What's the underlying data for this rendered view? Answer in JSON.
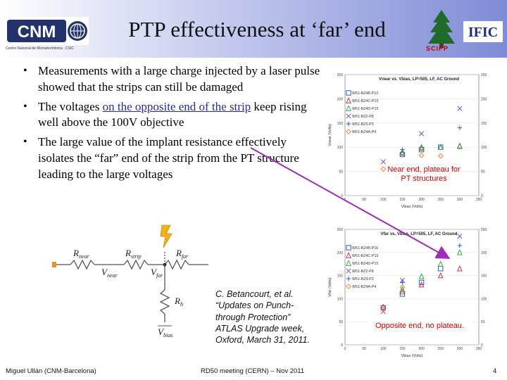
{
  "header": {
    "title": "PTP effectiveness at ‘far’ end"
  },
  "logos": {
    "cnm_text": "CNM",
    "cnm_subtitle": "Centro Nacional de Microelectrónica · CSIC",
    "scipp_text": "SCIPP",
    "ific_text": "IFIC"
  },
  "bullets": [
    {
      "text": "Measurements with a large charge injected by a laser pulse showed that the strips can still be damaged"
    },
    {
      "before": "The voltages ",
      "link": "on the opposite end of the strip",
      "after": " keep rising well above the 100V objective"
    },
    {
      "text": "The large value of the implant resistance effectively isolates the “far” end of the strip from the PT structure leading to the large voltages"
    }
  ],
  "circuit": {
    "r_near": "R",
    "r_near_sub": "near",
    "v_near": "V",
    "v_near_sub": "near",
    "r_strip": "R",
    "r_strip_sub": "strip",
    "v_far": "V",
    "v_far_sub": "far",
    "r_far": "R",
    "r_far_sub": "far",
    "r_b": "R",
    "r_b_sub": "b",
    "v_bias": "V",
    "v_bias_sub": "bias"
  },
  "citation": {
    "line1": "C. Betancourt, et al.",
    "line2": "“Updates on Punch-",
    "line3": "through Protection”",
    "line4": "ATLAS Upgrade week,",
    "line5": "Oxford, March 31, 2011."
  },
  "plot_notes": {
    "top": "Near end, plateau for PT structures",
    "bottom": "Opposite end, no plateau."
  },
  "footer": {
    "left": "Miguel Ullán (CNM-Barcelona)",
    "center": "RD50 meeting (CERN) – Nov 2011",
    "page": "4"
  },
  "chart_data": [
    {
      "type": "scatter",
      "title": "Vnear vs. Vbias, LP=505, LF, AC Ground",
      "xlabel": "Vbias (Volts)",
      "ylabel": "Vnear (Volts)",
      "xlim": [
        0,
        350
      ],
      "ylim": [
        0,
        250
      ],
      "xticks": [
        0,
        50,
        100,
        150,
        200,
        250,
        300,
        350
      ],
      "yticks": [
        0,
        50,
        100,
        150,
        200,
        250
      ],
      "series": [
        {
          "name": "W51-BZ4B-P13",
          "color": "#3355cc",
          "marker": "square",
          "x": [
            150,
            200,
            250
          ],
          "y": [
            85,
            95,
            100
          ]
        },
        {
          "name": "W51-BZ4C-P15",
          "color": "#cc3344",
          "marker": "triangle",
          "x": [
            150,
            200,
            250,
            300
          ],
          "y": [
            88,
            98,
            100,
            102
          ]
        },
        {
          "name": "W51-BZ4D-P15",
          "color": "#33aa55",
          "marker": "triangle",
          "x": [
            150,
            200,
            250,
            300
          ],
          "y": [
            90,
            100,
            100,
            103
          ]
        },
        {
          "name": "W51-BZ2-P8",
          "color": "#7a52b8",
          "marker": "x",
          "x": [
            100,
            200,
            300
          ],
          "y": [
            70,
            128,
            180
          ]
        },
        {
          "name": "W51-BZ3-P3",
          "color": "#3355cc",
          "marker": "plus",
          "x": [
            150,
            300
          ],
          "y": [
            95,
            140
          ]
        },
        {
          "name": "W51-BZ4A-P4",
          "color": "#ee8833",
          "marker": "diamond",
          "x": [
            100,
            200,
            250
          ],
          "y": [
            55,
            83,
            82
          ]
        }
      ],
      "legend": "top-left"
    },
    {
      "type": "scatter",
      "title": "Vfar vs. Vbias, LP=505, LF, AC Ground",
      "xlabel": "Vbias (Volts)",
      "ylabel": "Vfar (Volts)",
      "xlim": [
        0,
        350
      ],
      "ylim": [
        0,
        250
      ],
      "xticks": [
        0,
        50,
        100,
        150,
        200,
        250,
        300,
        350
      ],
      "yticks": [
        0,
        50,
        100,
        150,
        200,
        250
      ],
      "series": [
        {
          "name": "W51-BZ4B-P16",
          "color": "#3355cc",
          "marker": "square",
          "x": [
            100,
            150,
            200,
            250
          ],
          "y": [
            80,
            110,
            135,
            165
          ]
        },
        {
          "name": "W51-BZ4C-P15",
          "color": "#cc3344",
          "marker": "triangle",
          "x": [
            100,
            150,
            200,
            250,
            300
          ],
          "y": [
            82,
            115,
            130,
            150,
            165
          ]
        },
        {
          "name": "W51-BZ4D-P15",
          "color": "#33aa55",
          "marker": "triangle",
          "x": [
            150,
            200,
            250,
            300
          ],
          "y": [
            120,
            148,
            175,
            200
          ]
        },
        {
          "name": "W51-BZ2-P8",
          "color": "#7a52b8",
          "marker": "x",
          "x": [
            100,
            150,
            300
          ],
          "y": [
            72,
            140,
            235
          ]
        },
        {
          "name": "W51-BZ3-P3",
          "color": "#3355cc",
          "marker": "plus",
          "x": [
            150,
            300
          ],
          "y": [
            135,
            215
          ]
        },
        {
          "name": "W51-BZ4A-P4",
          "color": "#ee8833",
          "marker": "diamond",
          "x": [
            100,
            150
          ],
          "y": [
            76,
            125
          ]
        }
      ],
      "legend": "top-left"
    }
  ]
}
